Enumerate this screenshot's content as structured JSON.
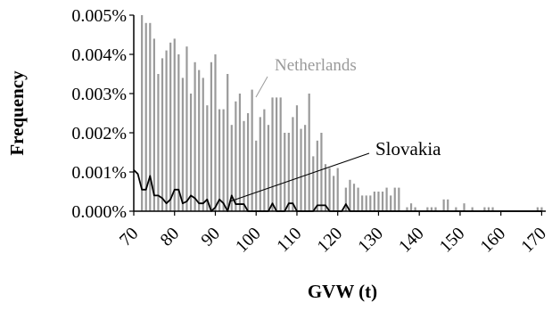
{
  "chart_data": {
    "type": "bar",
    "xlabel": "GVW (t)",
    "ylabel": "Frequency",
    "xlim": [
      70,
      171
    ],
    "ylim": [
      0,
      0.005
    ],
    "x_ticks": [
      "70",
      "80",
      "90",
      "100",
      "110",
      "120",
      "130",
      "140",
      "150",
      "160",
      "170"
    ],
    "y_ticks": [
      "0.000%",
      "0.001%",
      "0.002%",
      "0.003%",
      "0.004%",
      "0.005%"
    ],
    "annotations": [
      "Netherlands",
      "Slovakia"
    ],
    "series": [
      {
        "name": "Netherlands",
        "type": "bar",
        "color": "#9a9a9a",
        "x": [
          72,
          73,
          74,
          75,
          76,
          77,
          78,
          79,
          80,
          81,
          82,
          83,
          84,
          85,
          86,
          87,
          88,
          89,
          90,
          91,
          92,
          93,
          94,
          95,
          96,
          97,
          98,
          99,
          100,
          101,
          102,
          103,
          104,
          105,
          106,
          107,
          108,
          109,
          110,
          111,
          112,
          113,
          114,
          115,
          116,
          117,
          118,
          119,
          120,
          121,
          122,
          123,
          124,
          125,
          126,
          127,
          128,
          129,
          130,
          131,
          132,
          133,
          134,
          135,
          136,
          137,
          138,
          139,
          140,
          141,
          142,
          143,
          144,
          145,
          146,
          147,
          148,
          149,
          150,
          151,
          152,
          153,
          154,
          155,
          156,
          157,
          158,
          159,
          160,
          161,
          162,
          163,
          164,
          165,
          166,
          167,
          168,
          169,
          170
        ],
        "values": [
          0.005,
          0.0048,
          0.0048,
          0.0044,
          0.0035,
          0.0039,
          0.0041,
          0.0043,
          0.0044,
          0.004,
          0.0034,
          0.0042,
          0.003,
          0.0038,
          0.0036,
          0.0034,
          0.0027,
          0.0038,
          0.004,
          0.0026,
          0.0026,
          0.0035,
          0.0022,
          0.0028,
          0.003,
          0.0023,
          0.0025,
          0.0031,
          0.0018,
          0.0024,
          0.0026,
          0.0022,
          0.0029,
          0.0029,
          0.0029,
          0.002,
          0.002,
          0.0024,
          0.0027,
          0.0021,
          0.0022,
          0.003,
          0.0014,
          0.0018,
          0.002,
          0.0012,
          0.0011,
          0.0009,
          0.0011,
          0.0,
          0.0006,
          0.0008,
          0.0007,
          0.0006,
          0.0004,
          0.0004,
          0.0004,
          0.0005,
          0.0005,
          0.0005,
          0.0006,
          0.0004,
          0.0006,
          0.0006,
          0.0,
          0.0001,
          0.0002,
          0.0001,
          0.0,
          0.0,
          0.0001,
          0.0001,
          0.0001,
          0.0,
          0.0003,
          0.0003,
          0.0,
          0.0001,
          0.0,
          0.0002,
          0.0,
          0.0001,
          0.0,
          0.0,
          0.0001,
          0.0001,
          0.0001,
          0.0,
          0.0,
          0.0,
          0.0,
          0.0,
          0.0,
          0.0,
          0.0,
          0.0,
          0.0,
          0.0001,
          0.0001
        ]
      },
      {
        "name": "Slovakia",
        "type": "line",
        "color": "#000000",
        "x": [
          70,
          71,
          72,
          73,
          74,
          75,
          76,
          77,
          78,
          79,
          80,
          81,
          82,
          83,
          84,
          85,
          86,
          87,
          88,
          89,
          90,
          91,
          92,
          93,
          94,
          95,
          96,
          97,
          98,
          99,
          100,
          101,
          102,
          103,
          104,
          105,
          106,
          107,
          108,
          109,
          110,
          111,
          112,
          113,
          114,
          115,
          116,
          117,
          118,
          119,
          120,
          121,
          122,
          123,
          124,
          125,
          126,
          127,
          128,
          129,
          130,
          131,
          132,
          133,
          134,
          135,
          136,
          137,
          138,
          139,
          140,
          141,
          142,
          143,
          144,
          145,
          146,
          147,
          148,
          149,
          150,
          151,
          152,
          153,
          154,
          155,
          156,
          157,
          158,
          159,
          160,
          161,
          162,
          163,
          164,
          165,
          166,
          167,
          168,
          169,
          170
        ],
        "values": [
          0.00105,
          0.00095,
          0.00055,
          0.00055,
          0.0009,
          0.0004,
          0.0004,
          0.00033,
          0.0002,
          0.0003,
          0.00055,
          0.00055,
          0.0002,
          0.00025,
          0.0004,
          0.00033,
          0.0002,
          0.0002,
          0.0003,
          0.0,
          0.0001,
          0.0003,
          0.0002,
          0.0,
          0.0004,
          0.00018,
          0.00018,
          0.00018,
          0.0,
          0.0,
          0.0,
          0.0,
          0.0,
          0.0,
          0.0002,
          0.0,
          0.0,
          0.0,
          0.0002,
          0.0002,
          0.0,
          0.0,
          0.0,
          0.0,
          0.0,
          0.00015,
          0.00015,
          0.00015,
          0.0,
          0.0,
          0.0,
          0.0,
          0.00018,
          0.0,
          0.0,
          0.0,
          0.0,
          0.0,
          0.0,
          0.0,
          0.0,
          0.0,
          0.0,
          0.0,
          0.0,
          0.0,
          0.0,
          0.0,
          0.0,
          0.0,
          0.0,
          0.0,
          0.0,
          0.0,
          0.0,
          0.0,
          0.0,
          0.0,
          0.0,
          0.0,
          0.0,
          0.0,
          0.0,
          0.0,
          0.0,
          0.0,
          0.0,
          0.0,
          0.0,
          0.0,
          0.0,
          0.0,
          0.0,
          0.0,
          0.0,
          0.0,
          0.0,
          0.0,
          0.0,
          0.0,
          0.0
        ]
      }
    ],
    "grid": false,
    "legend": "none"
  }
}
